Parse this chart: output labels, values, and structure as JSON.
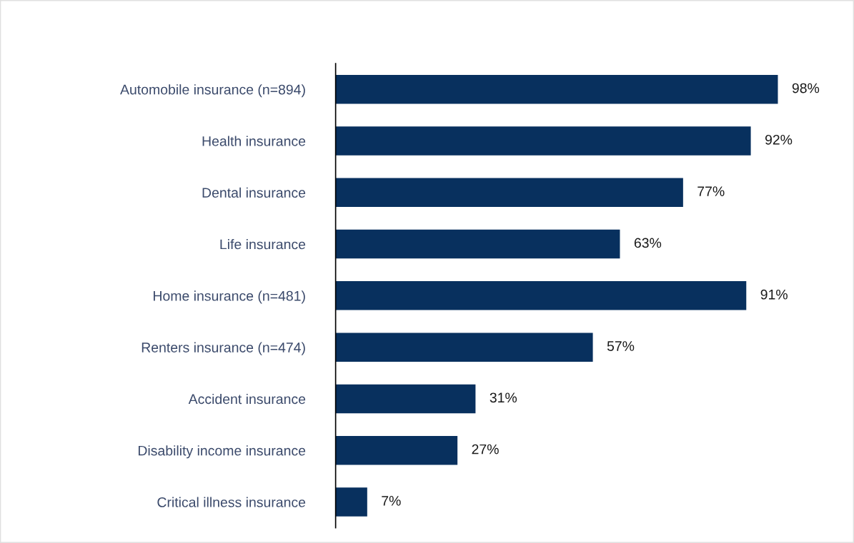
{
  "chart_data": {
    "type": "bar",
    "orientation": "horizontal",
    "categories": [
      "Automobile insurance (n=894)",
      "Health insurance",
      "Dental insurance",
      "Life insurance",
      "Home insurance (n=481)",
      "Renters insurance (n=474)",
      "Accident insurance",
      "Disability income insurance",
      "Critical illness insurance"
    ],
    "values": [
      98,
      92,
      77,
      63,
      91,
      57,
      31,
      27,
      7
    ],
    "value_labels": [
      "98%",
      "92%",
      "77%",
      "63%",
      "91%",
      "57%",
      "31%",
      "27%",
      "7%"
    ],
    "color": "#08305e",
    "grid": false,
    "legend": false
  }
}
